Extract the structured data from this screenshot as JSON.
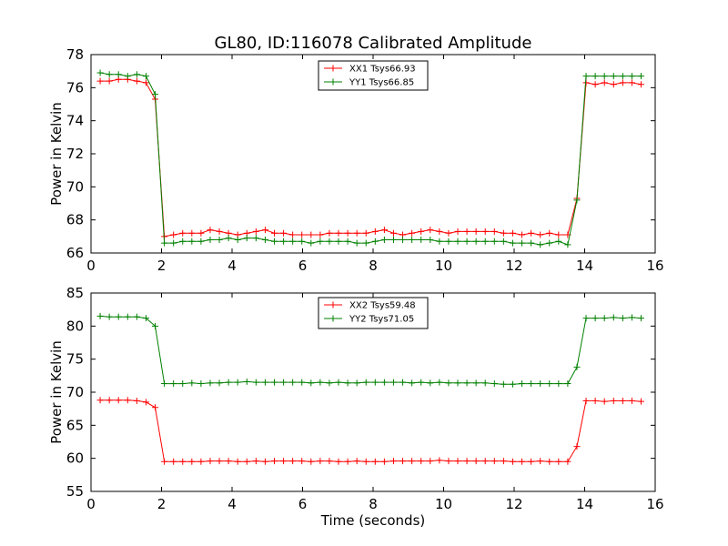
{
  "title": "GL80, ID:116078 Calibrated Amplitude",
  "chart_data": [
    {
      "type": "line",
      "xlabel": "",
      "ylabel": "Power in Kelvin",
      "xlim": [
        0,
        16
      ],
      "ylim": [
        66,
        78
      ],
      "xticks": [
        0,
        2,
        4,
        6,
        8,
        10,
        12,
        14,
        16
      ],
      "yticks": [
        66,
        68,
        70,
        72,
        74,
        76,
        78
      ],
      "legend": "top-center",
      "x": [
        0.26,
        0.52,
        0.78,
        1.04,
        1.3,
        1.56,
        1.82,
        2.08,
        2.34,
        2.6,
        2.86,
        3.12,
        3.38,
        3.64,
        3.9,
        4.16,
        4.42,
        4.68,
        4.94,
        5.2,
        5.46,
        5.72,
        5.98,
        6.24,
        6.5,
        6.76,
        7.02,
        7.28,
        7.54,
        7.8,
        8.06,
        8.32,
        8.58,
        8.84,
        9.1,
        9.36,
        9.62,
        9.88,
        10.14,
        10.4,
        10.66,
        10.92,
        11.18,
        11.44,
        11.7,
        11.96,
        12.22,
        12.48,
        12.74,
        13.0,
        13.26,
        13.52,
        13.78,
        14.04,
        14.3,
        14.56,
        14.82,
        15.08,
        15.34,
        15.6
      ],
      "series": [
        {
          "name": "XX1 Tsys66.93",
          "color": "#ff0000",
          "values": [
            76.4,
            76.4,
            76.5,
            76.5,
            76.4,
            76.3,
            75.3,
            67.0,
            67.1,
            67.2,
            67.2,
            67.2,
            67.4,
            67.3,
            67.2,
            67.1,
            67.2,
            67.3,
            67.4,
            67.2,
            67.2,
            67.1,
            67.1,
            67.1,
            67.1,
            67.2,
            67.2,
            67.2,
            67.2,
            67.2,
            67.3,
            67.4,
            67.2,
            67.1,
            67.2,
            67.3,
            67.4,
            67.3,
            67.2,
            67.3,
            67.3,
            67.3,
            67.3,
            67.3,
            67.2,
            67.2,
            67.1,
            67.2,
            67.1,
            67.2,
            67.1,
            67.1,
            69.3,
            76.3,
            76.2,
            76.3,
            76.2,
            76.3,
            76.3,
            76.2
          ]
        },
        {
          "name": "YY1 Tsys66.85",
          "color": "#008000",
          "values": [
            76.9,
            76.8,
            76.8,
            76.7,
            76.8,
            76.7,
            75.6,
            66.6,
            66.6,
            66.7,
            66.7,
            66.7,
            66.8,
            66.8,
            66.9,
            66.8,
            66.9,
            66.9,
            66.8,
            66.7,
            66.7,
            66.7,
            66.7,
            66.6,
            66.7,
            66.7,
            66.7,
            66.7,
            66.6,
            66.6,
            66.7,
            66.8,
            66.8,
            66.8,
            66.8,
            66.8,
            66.8,
            66.7,
            66.7,
            66.7,
            66.7,
            66.7,
            66.7,
            66.7,
            66.7,
            66.6,
            66.6,
            66.6,
            66.5,
            66.6,
            66.7,
            66.5,
            69.2,
            76.7,
            76.7,
            76.7,
            76.7,
            76.7,
            76.7,
            76.7
          ]
        }
      ]
    },
    {
      "type": "line",
      "xlabel": "Time (seconds)",
      "ylabel": "Power in Kelvin",
      "xlim": [
        0,
        16
      ],
      "ylim": [
        55,
        85
      ],
      "xticks": [
        0,
        2,
        4,
        6,
        8,
        10,
        12,
        14,
        16
      ],
      "yticks": [
        55,
        60,
        65,
        70,
        75,
        80,
        85
      ],
      "legend": "top-center",
      "x": [
        0.26,
        0.52,
        0.78,
        1.04,
        1.3,
        1.56,
        1.82,
        2.08,
        2.34,
        2.6,
        2.86,
        3.12,
        3.38,
        3.64,
        3.9,
        4.16,
        4.42,
        4.68,
        4.94,
        5.2,
        5.46,
        5.72,
        5.98,
        6.24,
        6.5,
        6.76,
        7.02,
        7.28,
        7.54,
        7.8,
        8.06,
        8.32,
        8.58,
        8.84,
        9.1,
        9.36,
        9.62,
        9.88,
        10.14,
        10.4,
        10.66,
        10.92,
        11.18,
        11.44,
        11.7,
        11.96,
        12.22,
        12.48,
        12.74,
        13.0,
        13.26,
        13.52,
        13.78,
        14.04,
        14.3,
        14.56,
        14.82,
        15.08,
        15.34,
        15.6
      ],
      "series": [
        {
          "name": "XX2 Tsys59.48",
          "color": "#ff0000",
          "values": [
            68.8,
            68.8,
            68.8,
            68.8,
            68.7,
            68.5,
            67.7,
            59.5,
            59.5,
            59.5,
            59.5,
            59.5,
            59.6,
            59.6,
            59.6,
            59.5,
            59.5,
            59.6,
            59.5,
            59.6,
            59.6,
            59.6,
            59.6,
            59.5,
            59.6,
            59.6,
            59.5,
            59.5,
            59.6,
            59.5,
            59.5,
            59.5,
            59.6,
            59.6,
            59.6,
            59.6,
            59.6,
            59.7,
            59.6,
            59.6,
            59.6,
            59.6,
            59.6,
            59.6,
            59.6,
            59.5,
            59.5,
            59.5,
            59.6,
            59.5,
            59.5,
            59.5,
            61.8,
            68.7,
            68.7,
            68.6,
            68.7,
            68.7,
            68.7,
            68.6
          ]
        },
        {
          "name": "YY2 Tsys71.05",
          "color": "#008000",
          "values": [
            81.5,
            81.4,
            81.4,
            81.4,
            81.4,
            81.2,
            80.0,
            71.3,
            71.3,
            71.3,
            71.4,
            71.3,
            71.4,
            71.4,
            71.5,
            71.5,
            71.6,
            71.5,
            71.5,
            71.5,
            71.5,
            71.5,
            71.5,
            71.4,
            71.5,
            71.4,
            71.5,
            71.4,
            71.4,
            71.5,
            71.5,
            71.5,
            71.5,
            71.5,
            71.4,
            71.5,
            71.4,
            71.5,
            71.4,
            71.4,
            71.4,
            71.4,
            71.4,
            71.3,
            71.2,
            71.2,
            71.3,
            71.3,
            71.3,
            71.3,
            71.3,
            71.3,
            73.8,
            81.2,
            81.2,
            81.2,
            81.3,
            81.2,
            81.3,
            81.2
          ]
        }
      ]
    }
  ]
}
